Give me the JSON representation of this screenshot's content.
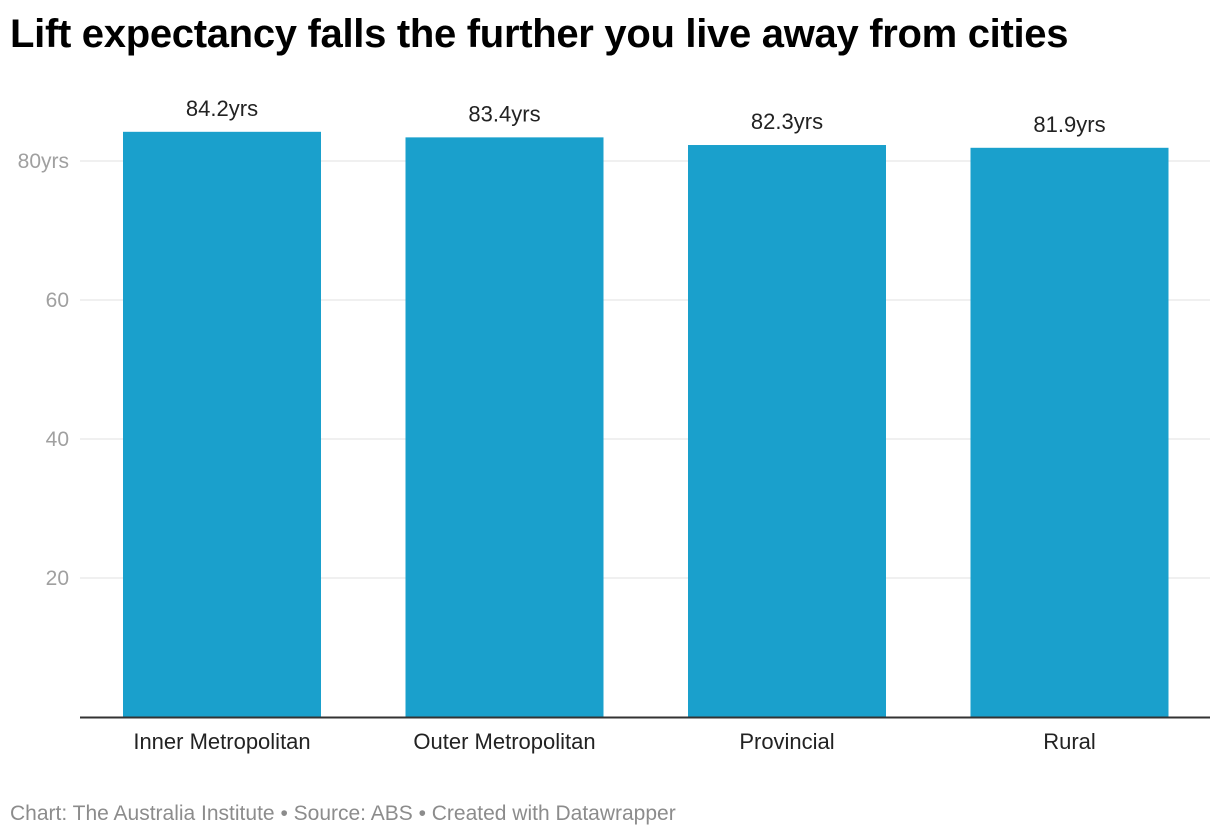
{
  "title": "Lift expectancy falls the further you live away from cities",
  "footer": {
    "chart_credit": "Chart: The Australia Institute",
    "separator": "•",
    "source": "Source: ABS",
    "created_with": "Created with Datawrapper"
  },
  "chart_data": {
    "type": "bar",
    "title": "Lift expectancy falls the further you live away from cities",
    "categories": [
      "Inner Metropolitan",
      "Outer Metropolitan",
      "Provincial",
      "Rural"
    ],
    "values": [
      84.2,
      83.4,
      82.3,
      81.9
    ],
    "value_labels": [
      "84.2yrs",
      "83.4yrs",
      "82.3yrs",
      "81.9yrs"
    ],
    "y_ticks": [
      20,
      40,
      60,
      80
    ],
    "y_tick_labels": [
      "20",
      "40",
      "60",
      "80yrs"
    ],
    "ylim": [
      0,
      80
    ],
    "grid": true,
    "bar_color": "#1aa0cc",
    "gridline_color": "#e0e0e0",
    "axis_color": "#333333",
    "tick_label_color": "#a0a0a0",
    "xlabel": "",
    "ylabel": ""
  }
}
